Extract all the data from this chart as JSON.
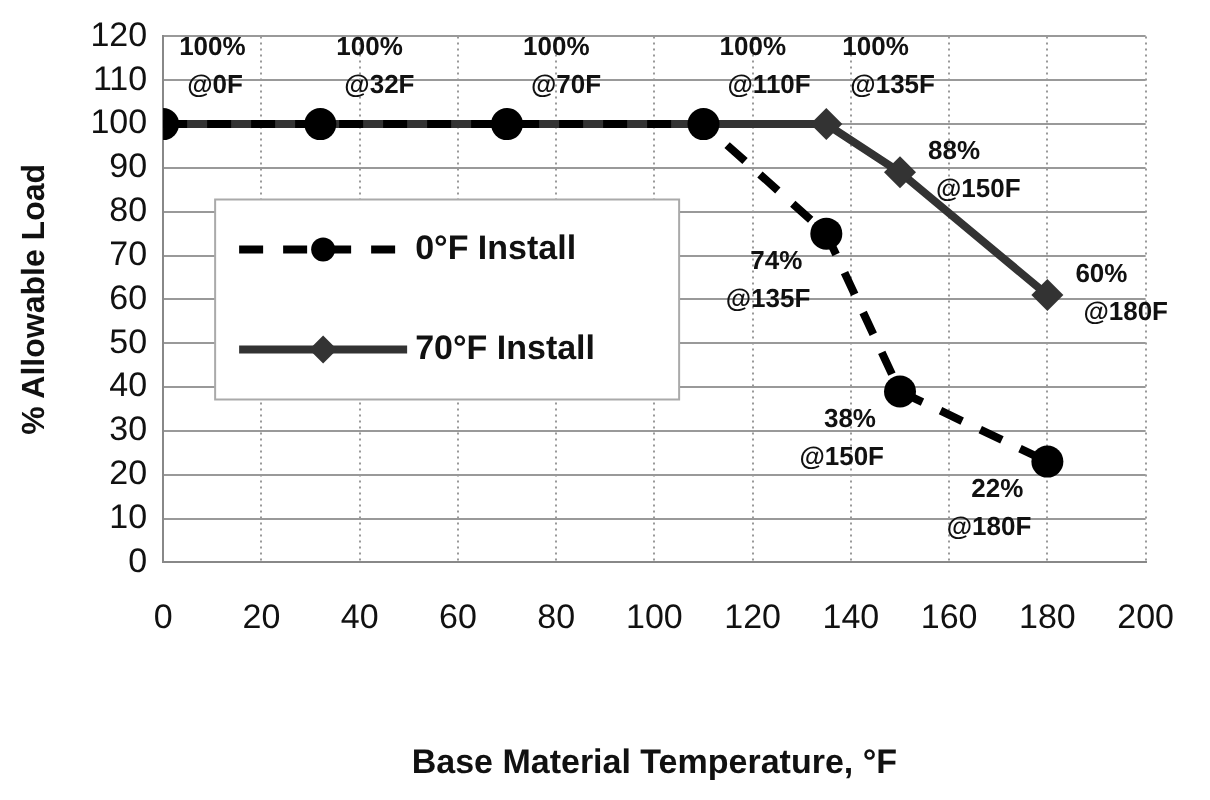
{
  "chart_data": {
    "type": "line",
    "xlabel": "Base Material Temperature, °F",
    "ylabel": "% Allowable Load",
    "x": [
      0,
      32,
      70,
      110,
      135,
      150,
      180
    ],
    "series": [
      {
        "name": "0°F Install",
        "color": "#000000",
        "marker": "circle",
        "line_style": "dashed",
        "values": [
          100,
          100,
          100,
          100,
          75,
          39,
          23
        ]
      },
      {
        "name": "70°F Install",
        "color": "#333333",
        "marker": "diamond",
        "line_style": "solid",
        "values": [
          100,
          100,
          100,
          100,
          100,
          89,
          61
        ]
      }
    ],
    "xlim": [
      0,
      200
    ],
    "xticks": [
      0,
      20,
      40,
      60,
      80,
      100,
      120,
      140,
      160,
      180,
      200
    ],
    "ylim": [
      0,
      120
    ],
    "yticks": [
      0,
      10,
      20,
      30,
      40,
      50,
      60,
      70,
      80,
      90,
      100,
      110,
      120
    ],
    "grid": true,
    "legend": "left",
    "annotations": [
      {
        "text": "100%\n@0F",
        "x": 0,
        "y": 100
      },
      {
        "text": "100%\n@32F",
        "x": 32,
        "y": 100
      },
      {
        "text": "100%\n@70F",
        "x": 70,
        "y": 100
      },
      {
        "text": "100%\n@110F",
        "x": 110,
        "y": 100
      },
      {
        "text": "100%\n@135F",
        "x": 135,
        "y": 100
      },
      {
        "text": "88%\n@150F",
        "x": 150,
        "y": 89
      },
      {
        "text": "60%\n@180F",
        "x": 180,
        "y": 61
      },
      {
        "text": "74%\n@135F",
        "x": 135,
        "y": 75
      },
      {
        "text": "38%\n@150F",
        "x": 150,
        "y": 39
      },
      {
        "text": "22%\n@180F",
        "x": 180,
        "y": 23
      }
    ]
  }
}
